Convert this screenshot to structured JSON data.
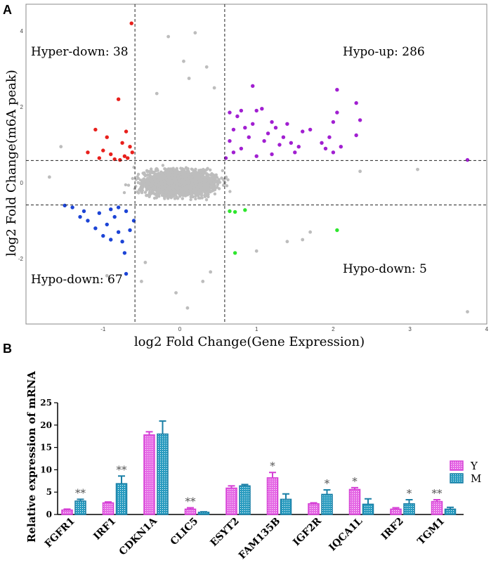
{
  "colors": {
    "gray": "#bdbdbd",
    "red": "#e8201c",
    "purple": "#a11fd1",
    "blue": "#1c44d6",
    "green": "#2ee62e",
    "magenta": "#e040e0",
    "teal": "#1f8fb4"
  },
  "chart_data": [
    {
      "panel": "A",
      "type": "scatter",
      "xlabel": "log2 Fold Change(Gene Expression)",
      "ylabel": "log2 Fold Change(m6A peak)",
      "xlim": [
        -2,
        4
      ],
      "ylim": [
        -3.7,
        4.3
      ],
      "x_ticks": [
        -1,
        0,
        1,
        2,
        3,
        4
      ],
      "y_ticks": [
        -2,
        0,
        2,
        4
      ],
      "thresholds": {
        "x": [
          -0.585,
          0.585
        ],
        "y": [
          -0.585,
          0.585
        ]
      },
      "quadrant_labels": {
        "top_left": "Hyper-down: 38",
        "top_right": "Hypo-up: 286",
        "bottom_left": "Hypo-down: 67",
        "bottom_right": "Hypo-down: 5"
      },
      "series": [
        {
          "name": "Hyper-down",
          "count": 38,
          "color": "red",
          "points": [
            [
              -0.63,
              4.2
            ],
            [
              -0.8,
              2.2
            ],
            [
              -1.1,
              1.4
            ],
            [
              -0.7,
              1.35
            ],
            [
              -0.95,
              1.2
            ],
            [
              -0.75,
              1.05
            ],
            [
              -1.0,
              0.85
            ],
            [
              -1.2,
              0.8
            ],
            [
              -0.65,
              0.95
            ],
            [
              -0.9,
              0.75
            ],
            [
              -0.72,
              0.7
            ],
            [
              -0.85,
              0.62
            ],
            [
              -1.05,
              0.65
            ],
            [
              -0.62,
              0.8
            ],
            [
              -0.78,
              0.6
            ],
            [
              -0.68,
              0.65
            ]
          ]
        },
        {
          "name": "Hypo-up",
          "count": 286,
          "color": "purple",
          "points": [
            [
              0.95,
              2.55
            ],
            [
              1.07,
              1.95
            ],
            [
              1.0,
              1.9
            ],
            [
              0.8,
              1.9
            ],
            [
              0.65,
              1.85
            ],
            [
              0.75,
              1.75
            ],
            [
              1.2,
              1.6
            ],
            [
              1.4,
              1.55
            ],
            [
              1.6,
              1.35
            ],
            [
              1.7,
              1.4
            ],
            [
              2.05,
              2.45
            ],
            [
              2.3,
              2.1
            ],
            [
              2.35,
              1.65
            ],
            [
              2.05,
              1.85
            ],
            [
              2.0,
              1.6
            ],
            [
              2.3,
              1.25
            ],
            [
              2.1,
              0.95
            ],
            [
              1.95,
              1.2
            ],
            [
              1.85,
              1.05
            ],
            [
              2.0,
              0.8
            ],
            [
              3.75,
              0.6
            ],
            [
              0.7,
              1.4
            ],
            [
              0.9,
              1.2
            ],
            [
              1.1,
              1.1
            ],
            [
              1.3,
              1.0
            ],
            [
              0.8,
              0.9
            ],
            [
              1.0,
              0.7
            ],
            [
              0.7,
              0.8
            ],
            [
              1.5,
              0.8
            ],
            [
              1.2,
              0.75
            ],
            [
              1.9,
              0.9
            ],
            [
              0.65,
              1.1
            ],
            [
              0.6,
              0.65
            ],
            [
              0.85,
              1.45
            ],
            [
              1.15,
              1.3
            ],
            [
              1.35,
              1.2
            ],
            [
              1.55,
              0.95
            ],
            [
              0.95,
              1.55
            ],
            [
              1.25,
              1.45
            ],
            [
              1.45,
              1.05
            ]
          ]
        },
        {
          "name": "Hypo-down (left)",
          "count": 67,
          "color": "blue",
          "points": [
            [
              -0.7,
              -2.4
            ],
            [
              -0.72,
              -1.85
            ],
            [
              -0.75,
              -1.55
            ],
            [
              -0.9,
              -1.5
            ],
            [
              -1.0,
              -1.4
            ],
            [
              -0.8,
              -1.3
            ],
            [
              -1.1,
              -1.2
            ],
            [
              -0.65,
              -1.25
            ],
            [
              -1.2,
              -1.0
            ],
            [
              -0.95,
              -1.1
            ],
            [
              -1.3,
              -0.9
            ],
            [
              -1.4,
              -0.65
            ],
            [
              -1.25,
              -0.75
            ],
            [
              -0.85,
              -0.9
            ],
            [
              -1.05,
              -0.8
            ],
            [
              -0.7,
              -0.75
            ],
            [
              -0.6,
              -1.0
            ],
            [
              -0.8,
              -0.65
            ],
            [
              -1.5,
              -0.6
            ],
            [
              -0.9,
              -0.7
            ]
          ]
        },
        {
          "name": "Hypo-down (right)",
          "count": 5,
          "color": "green",
          "points": [
            [
              0.65,
              -0.75
            ],
            [
              0.72,
              -0.77
            ],
            [
              0.85,
              -0.72
            ],
            [
              0.72,
              -1.85
            ],
            [
              2.05,
              -1.25
            ]
          ]
        }
      ],
      "gray_outliers": [
        [
          -0.15,
          3.85
        ],
        [
          0.2,
          3.95
        ],
        [
          0.05,
          3.2
        ],
        [
          0.12,
          2.75
        ],
        [
          0.35,
          3.05
        ],
        [
          0.45,
          2.5
        ],
        [
          -0.3,
          2.35
        ],
        [
          -1.55,
          0.95
        ],
        [
          -1.7,
          0.15
        ],
        [
          3.1,
          0.35
        ],
        [
          3.75,
          -3.4
        ],
        [
          2.35,
          0.3
        ],
        [
          -0.05,
          -2.9
        ],
        [
          0.1,
          -3.3
        ],
        [
          -0.5,
          -2.6
        ],
        [
          0.3,
          -2.6
        ],
        [
          1.0,
          -1.8
        ],
        [
          1.6,
          -1.5
        ],
        [
          1.7,
          -1.3
        ],
        [
          1.4,
          -1.55
        ],
        [
          -0.95,
          -2.45
        ],
        [
          -0.45,
          -2.1
        ],
        [
          0.4,
          -2.35
        ]
      ]
    },
    {
      "panel": "B",
      "type": "bar",
      "ylabel": "Relative expression of mRNA",
      "ylim": [
        0,
        25
      ],
      "y_ticks": [
        0,
        5,
        10,
        15,
        20,
        25
      ],
      "categories": [
        "FGFR1",
        "IRF1",
        "CDKN1A",
        "CLIC5",
        "ESYT2",
        "FAM135B",
        "IGF2R",
        "IQCA1L",
        "IRF2",
        "TGM1"
      ],
      "series": [
        {
          "name": "Y",
          "color": "magenta",
          "values": [
            1.0,
            2.6,
            17.8,
            1.2,
            5.9,
            8.2,
            2.4,
            5.6,
            1.2,
            2.9
          ],
          "errors": [
            0.2,
            0.2,
            0.7,
            0.3,
            0.5,
            1.2,
            0.2,
            0.4,
            0.3,
            0.4
          ]
        },
        {
          "name": "M",
          "color": "teal",
          "values": [
            3.0,
            6.9,
            18.0,
            0.5,
            6.4,
            3.4,
            4.5,
            2.3,
            2.4,
            1.2
          ],
          "errors": [
            0.4,
            1.7,
            2.9,
            0.1,
            0.3,
            1.2,
            1.0,
            1.2,
            0.9,
            0.4
          ]
        }
      ],
      "significance": [
        {
          "category": "FGFR1",
          "series": "M",
          "label": "**"
        },
        {
          "category": "IRF1",
          "series": "M",
          "label": "**"
        },
        {
          "category": "CLIC5",
          "series": "Y",
          "label": "**"
        },
        {
          "category": "FAM135B",
          "series": "Y",
          "label": "*"
        },
        {
          "category": "IGF2R",
          "series": "M",
          "label": "*"
        },
        {
          "category": "IQCA1L",
          "series": "Y",
          "label": "*"
        },
        {
          "category": "IRF2",
          "series": "M",
          "label": "*"
        },
        {
          "category": "TGM1",
          "series": "Y",
          "label": "**"
        }
      ],
      "legend": {
        "position": "top-right",
        "entries": [
          "Y",
          "M"
        ]
      }
    }
  ],
  "panels": {
    "a_label": "A",
    "b_label": "B"
  }
}
